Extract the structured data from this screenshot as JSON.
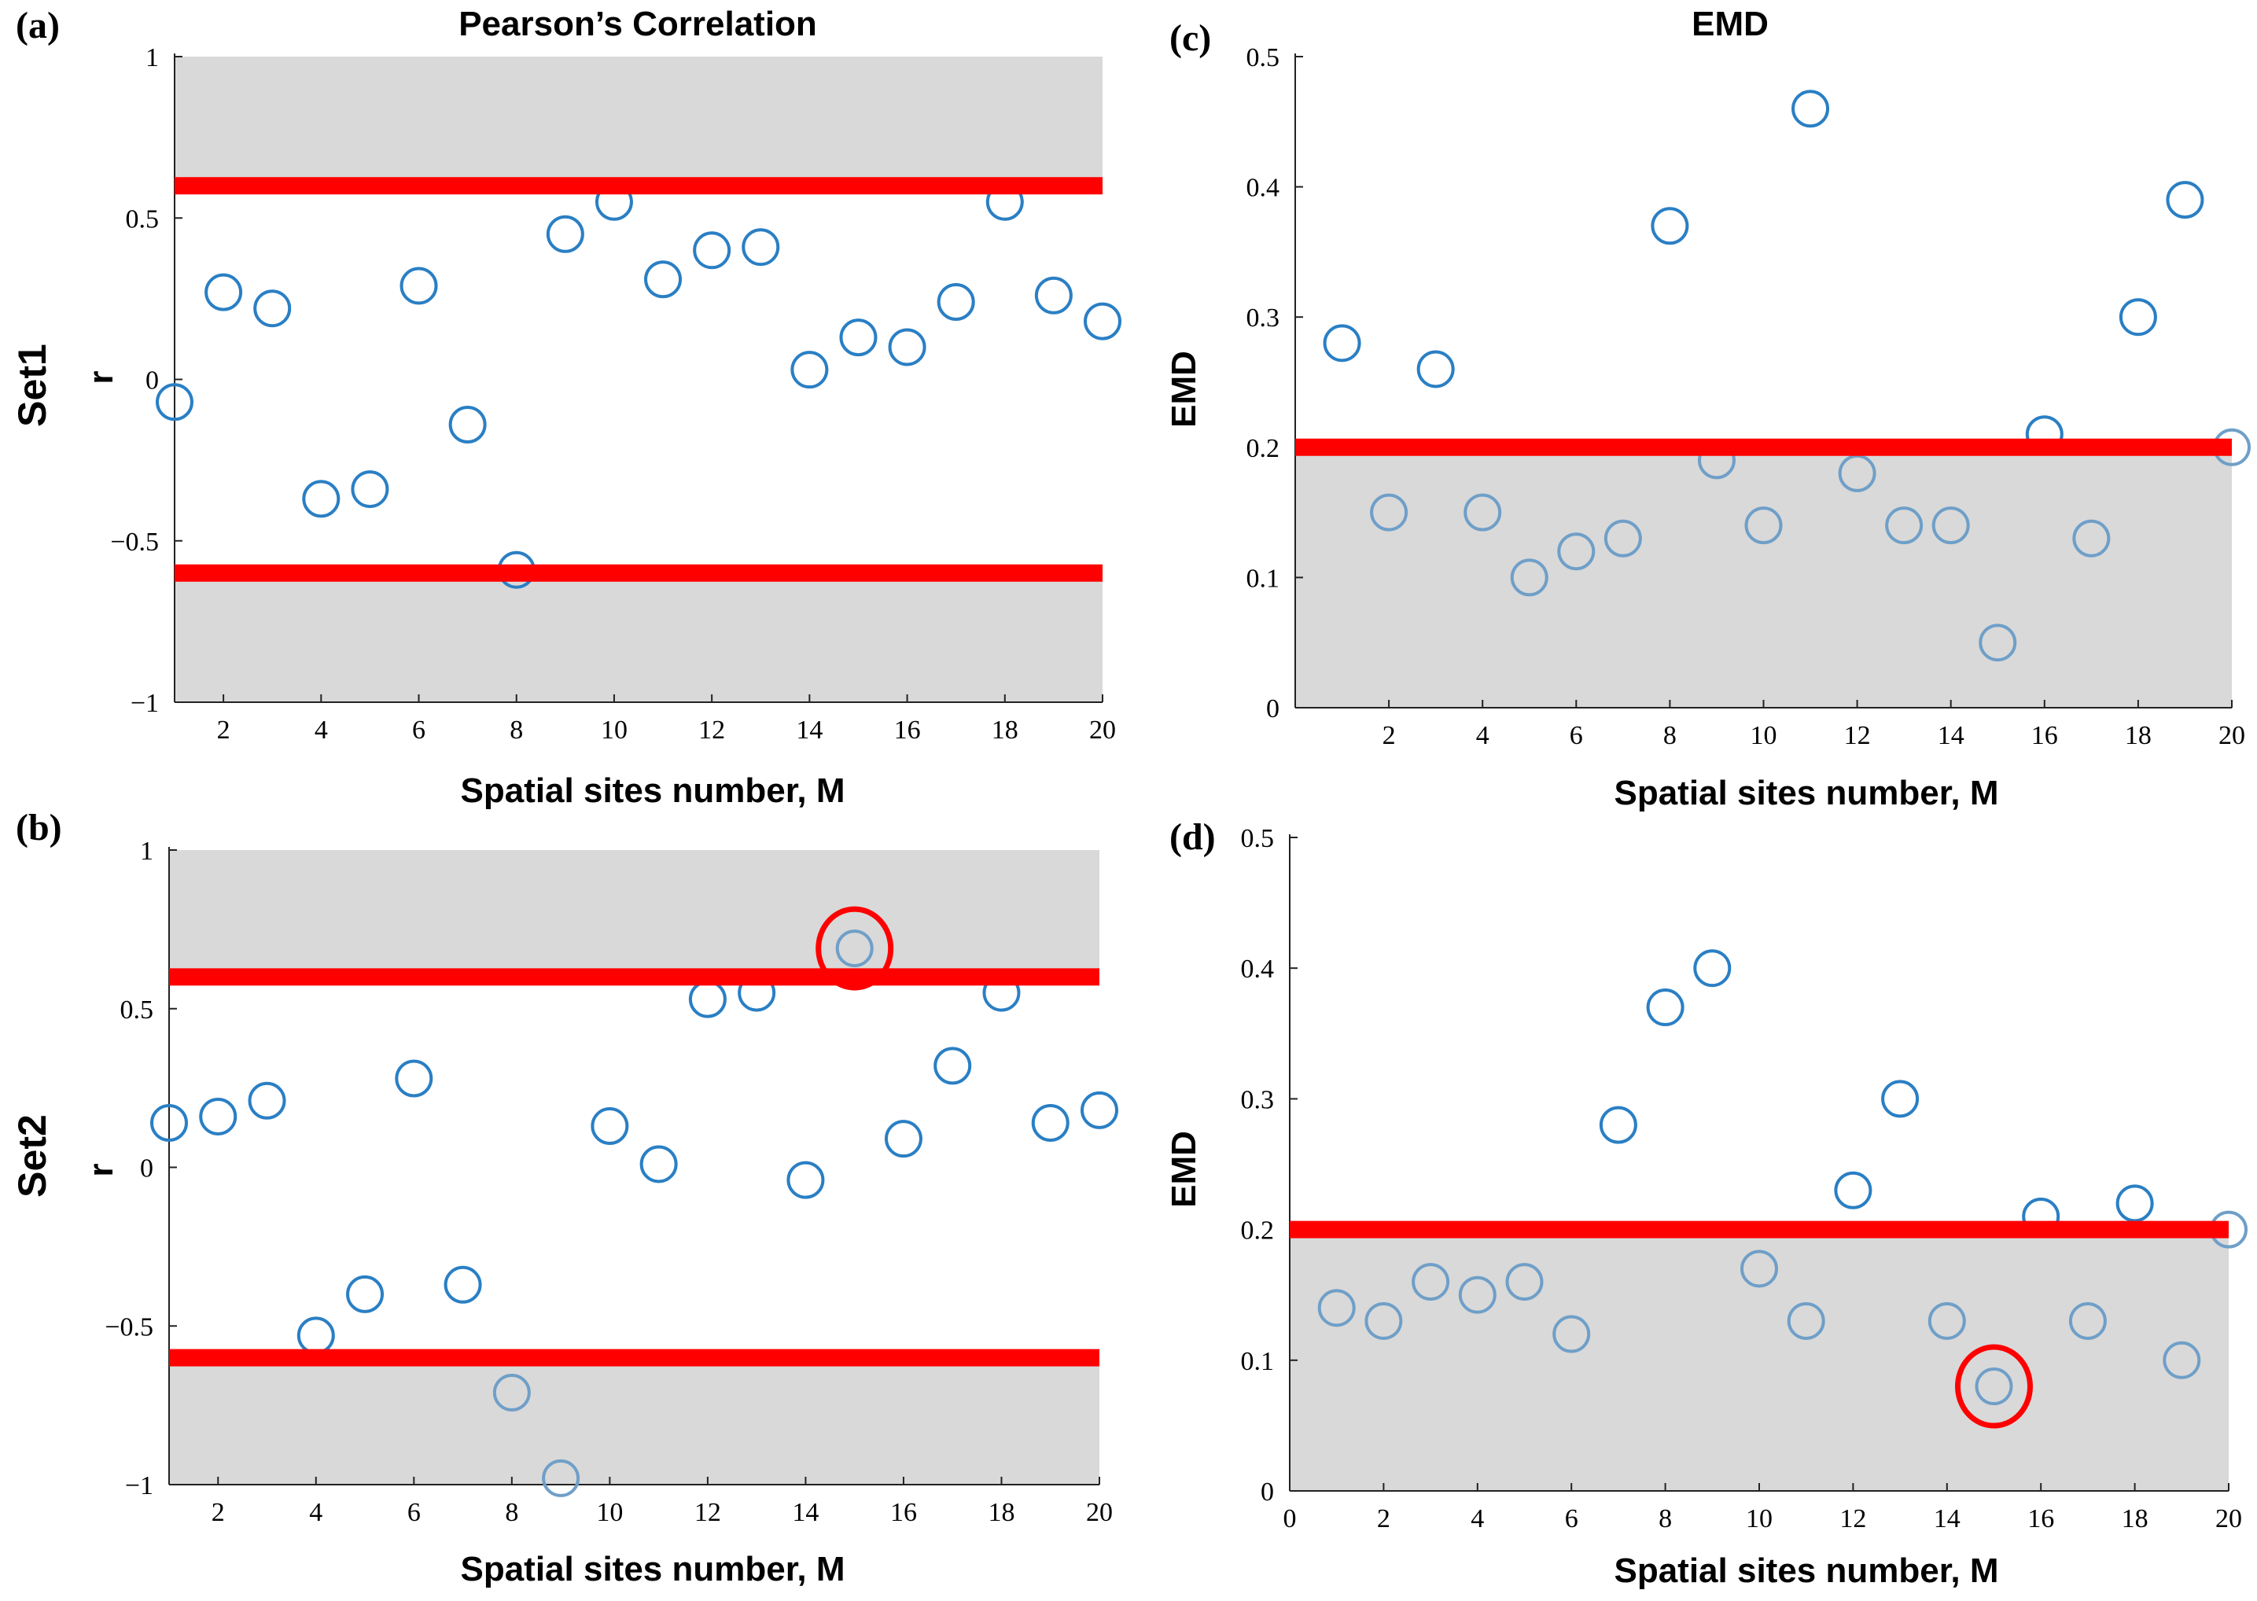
{
  "colors": {
    "marker": "#2a7fc4",
    "marker_in_band": "#6f9fc8",
    "threshold": "#ff0000",
    "band": "#d9d9d9",
    "highlight": "#ff0000"
  },
  "row_labels": [
    "Set1",
    "Set2"
  ],
  "chart_data": [
    {
      "id": "a",
      "panel_letter": "(a)",
      "type": "scatter",
      "title": "Pearson’s Correlation",
      "xlabel": "Spatial sites number, M",
      "ylabel": "r",
      "row_label": "Set1",
      "xlim": [
        1,
        20
      ],
      "ylim": [
        -1,
        1
      ],
      "xticks": [
        2,
        4,
        6,
        8,
        10,
        12,
        14,
        16,
        18,
        20
      ],
      "yticks": [
        -1,
        -0.5,
        0,
        0.5,
        1
      ],
      "ytick_labels": [
        "−1",
        "−0.5",
        "0",
        "0.5",
        "1"
      ],
      "thresholds": [
        0.6,
        -0.6
      ],
      "shaded_bands": [
        [
          0.6,
          1
        ],
        [
          -1,
          -0.6
        ]
      ],
      "x": [
        1,
        2,
        3,
        4,
        5,
        6,
        7,
        8,
        9,
        10,
        11,
        12,
        13,
        14,
        15,
        16,
        17,
        18,
        19,
        20
      ],
      "y": [
        -0.07,
        0.27,
        0.22,
        -0.37,
        -0.34,
        0.29,
        -0.14,
        -0.59,
        0.45,
        0.55,
        0.31,
        0.4,
        0.41,
        0.03,
        0.13,
        0.1,
        0.24,
        0.55,
        0.26,
        0.18
      ],
      "highlight_x": null
    },
    {
      "id": "b",
      "panel_letter": "(b)",
      "type": "scatter",
      "title": "",
      "xlabel": "Spatial sites number, M",
      "ylabel": "r",
      "row_label": "Set2",
      "xlim": [
        1,
        20
      ],
      "ylim": [
        -1,
        1
      ],
      "xticks": [
        2,
        4,
        6,
        8,
        10,
        12,
        14,
        16,
        18,
        20
      ],
      "yticks": [
        -1,
        -0.5,
        0,
        0.5,
        1
      ],
      "ytick_labels": [
        "−1",
        "−0.5",
        "0",
        "0.5",
        "1"
      ],
      "thresholds": [
        0.6,
        -0.6
      ],
      "shaded_bands": [
        [
          0.6,
          1
        ],
        [
          -1,
          -0.6
        ]
      ],
      "x": [
        1,
        2,
        3,
        4,
        5,
        6,
        7,
        8,
        9,
        10,
        11,
        12,
        13,
        14,
        15,
        16,
        17,
        18,
        19,
        20
      ],
      "y": [
        0.14,
        0.16,
        0.21,
        -0.53,
        -0.4,
        0.28,
        -0.37,
        -0.71,
        -0.98,
        0.13,
        0.01,
        0.53,
        0.55,
        -0.04,
        0.69,
        0.09,
        0.32,
        0.55,
        0.14,
        0.18
      ],
      "highlight_x": 15
    },
    {
      "id": "c",
      "panel_letter": "(c)",
      "type": "scatter",
      "title": "EMD",
      "xlabel": "Spatial sites number, M",
      "ylabel": "EMD",
      "row_label": "",
      "xlim": [
        0,
        20
      ],
      "ylim": [
        0,
        0.5
      ],
      "xticks": [
        2,
        4,
        6,
        8,
        10,
        12,
        14,
        16,
        18,
        20
      ],
      "yticks": [
        0,
        0.1,
        0.2,
        0.3,
        0.4,
        0.5
      ],
      "ytick_labels": [
        "0",
        "0.1",
        "0.2",
        "0.3",
        "0.4",
        "0.5"
      ],
      "thresholds": [
        0.2
      ],
      "shaded_bands": [
        [
          0,
          0.2
        ]
      ],
      "x": [
        1,
        2,
        3,
        4,
        5,
        6,
        7,
        8,
        9,
        10,
        11,
        12,
        13,
        14,
        15,
        16,
        17,
        18,
        19,
        20
      ],
      "y": [
        0.28,
        0.15,
        0.26,
        0.15,
        0.1,
        0.12,
        0.13,
        0.37,
        0.19,
        0.14,
        0.46,
        0.18,
        0.14,
        0.14,
        0.05,
        0.21,
        0.13,
        0.3,
        0.39,
        0.2
      ],
      "highlight_x": null
    },
    {
      "id": "d",
      "panel_letter": "(d)",
      "type": "scatter",
      "title": "",
      "xlabel": "Spatial sites number, M",
      "ylabel": "EMD",
      "row_label": "",
      "xlim": [
        0,
        20
      ],
      "ylim": [
        0,
        0.5
      ],
      "xticks": [
        0,
        2,
        4,
        6,
        8,
        10,
        12,
        14,
        16,
        18,
        20
      ],
      "yticks": [
        0,
        0.1,
        0.2,
        0.3,
        0.4,
        0.5
      ],
      "ytick_labels": [
        "0",
        "0.1",
        "0.2",
        "0.3",
        "0.4",
        "0.5"
      ],
      "thresholds": [
        0.2
      ],
      "shaded_bands": [
        [
          0,
          0.2
        ]
      ],
      "x": [
        1,
        2,
        3,
        4,
        5,
        6,
        7,
        8,
        9,
        10,
        11,
        12,
        13,
        14,
        15,
        16,
        17,
        18,
        19,
        20
      ],
      "y": [
        0.14,
        0.13,
        0.16,
        0.15,
        0.16,
        0.12,
        0.28,
        0.37,
        0.4,
        0.17,
        0.13,
        0.23,
        0.3,
        0.13,
        0.08,
        0.21,
        0.13,
        0.22,
        0.1,
        0.2
      ],
      "highlight_x": 15
    }
  ]
}
